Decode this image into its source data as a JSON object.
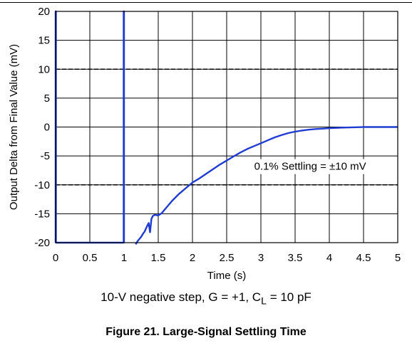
{
  "chart_data": {
    "type": "line",
    "xlabel": "Time (s)",
    "ylabel": "Output Delta from Final Value (mV)",
    "xlim": [
      0,
      5
    ],
    "ylim": [
      -20,
      20
    ],
    "xticks": [
      0,
      0.5,
      1,
      1.5,
      2,
      2.5,
      3,
      3.5,
      4,
      4.5,
      5
    ],
    "xtick_labels": [
      "0",
      "0.5",
      "1",
      "1.5",
      "2",
      "2.5",
      "3",
      "3.5",
      "4",
      "4.5",
      "5"
    ],
    "yticks": [
      -20,
      -15,
      -10,
      -5,
      0,
      5,
      10,
      15,
      20
    ],
    "ytick_labels": [
      "-20",
      "-15",
      "-10",
      "-5",
      "0",
      "5",
      "10",
      "15",
      "20"
    ],
    "grid": true,
    "series_color": "#1f3bd1",
    "series": [
      {
        "values_note_excluded": false,
        "x": [
          0,
          0,
          0.005,
          0.005,
          0.995,
          0.995,
          1.0,
          1.0
        ],
        "y": [
          -20,
          20,
          20,
          -20,
          -20,
          20,
          20,
          -20
        ]
      },
      {
        "x": [
          1.17,
          1.2,
          1.25,
          1.28,
          1.3,
          1.33,
          1.36,
          1.38,
          1.4,
          1.42,
          1.45,
          1.5,
          1.55,
          1.6,
          1.7,
          1.8,
          1.9,
          2.0,
          2.1,
          2.2,
          2.3,
          2.4,
          2.5,
          2.6,
          2.7,
          2.8,
          2.9,
          3.0,
          3.1,
          3.2,
          3.3,
          3.4,
          3.5,
          3.6,
          3.7,
          3.8,
          3.9,
          4.0,
          4.1,
          4.2,
          4.3,
          4.4,
          4.5,
          4.6,
          4.7,
          4.8,
          4.9,
          5.0
        ],
        "y": [
          -20.3,
          -19.7,
          -19.0,
          -18.4,
          -18.1,
          -17.3,
          -16.6,
          -18.2,
          -15.9,
          -15.4,
          -15.2,
          -15.3,
          -14.9,
          -14.2,
          -12.8,
          -11.6,
          -10.6,
          -9.6,
          -8.9,
          -8.1,
          -7.3,
          -6.5,
          -5.8,
          -5.1,
          -4.4,
          -3.8,
          -3.3,
          -2.8,
          -2.3,
          -1.8,
          -1.4,
          -1.05,
          -0.8,
          -0.6,
          -0.45,
          -0.35,
          -0.28,
          -0.2,
          -0.15,
          -0.1,
          -0.07,
          -0.04,
          0.0,
          0.0,
          0.0,
          0.0,
          0.0,
          0.0
        ]
      }
    ],
    "reference_lines": [
      {
        "axis": "y",
        "value": 10,
        "style": "dashed"
      },
      {
        "axis": "y",
        "value": -10,
        "style": "dashed"
      }
    ],
    "annotation": {
      "text": "0.1% Settling = ±10 mV",
      "x": 3.72,
      "y": -7.4
    }
  },
  "caption": {
    "prefix": "10-V negative step, G = +1, C",
    "subscript": "L",
    "suffix": " = 10 pF"
  },
  "figure_title": "Figure 21. Large-Signal Settling Time"
}
